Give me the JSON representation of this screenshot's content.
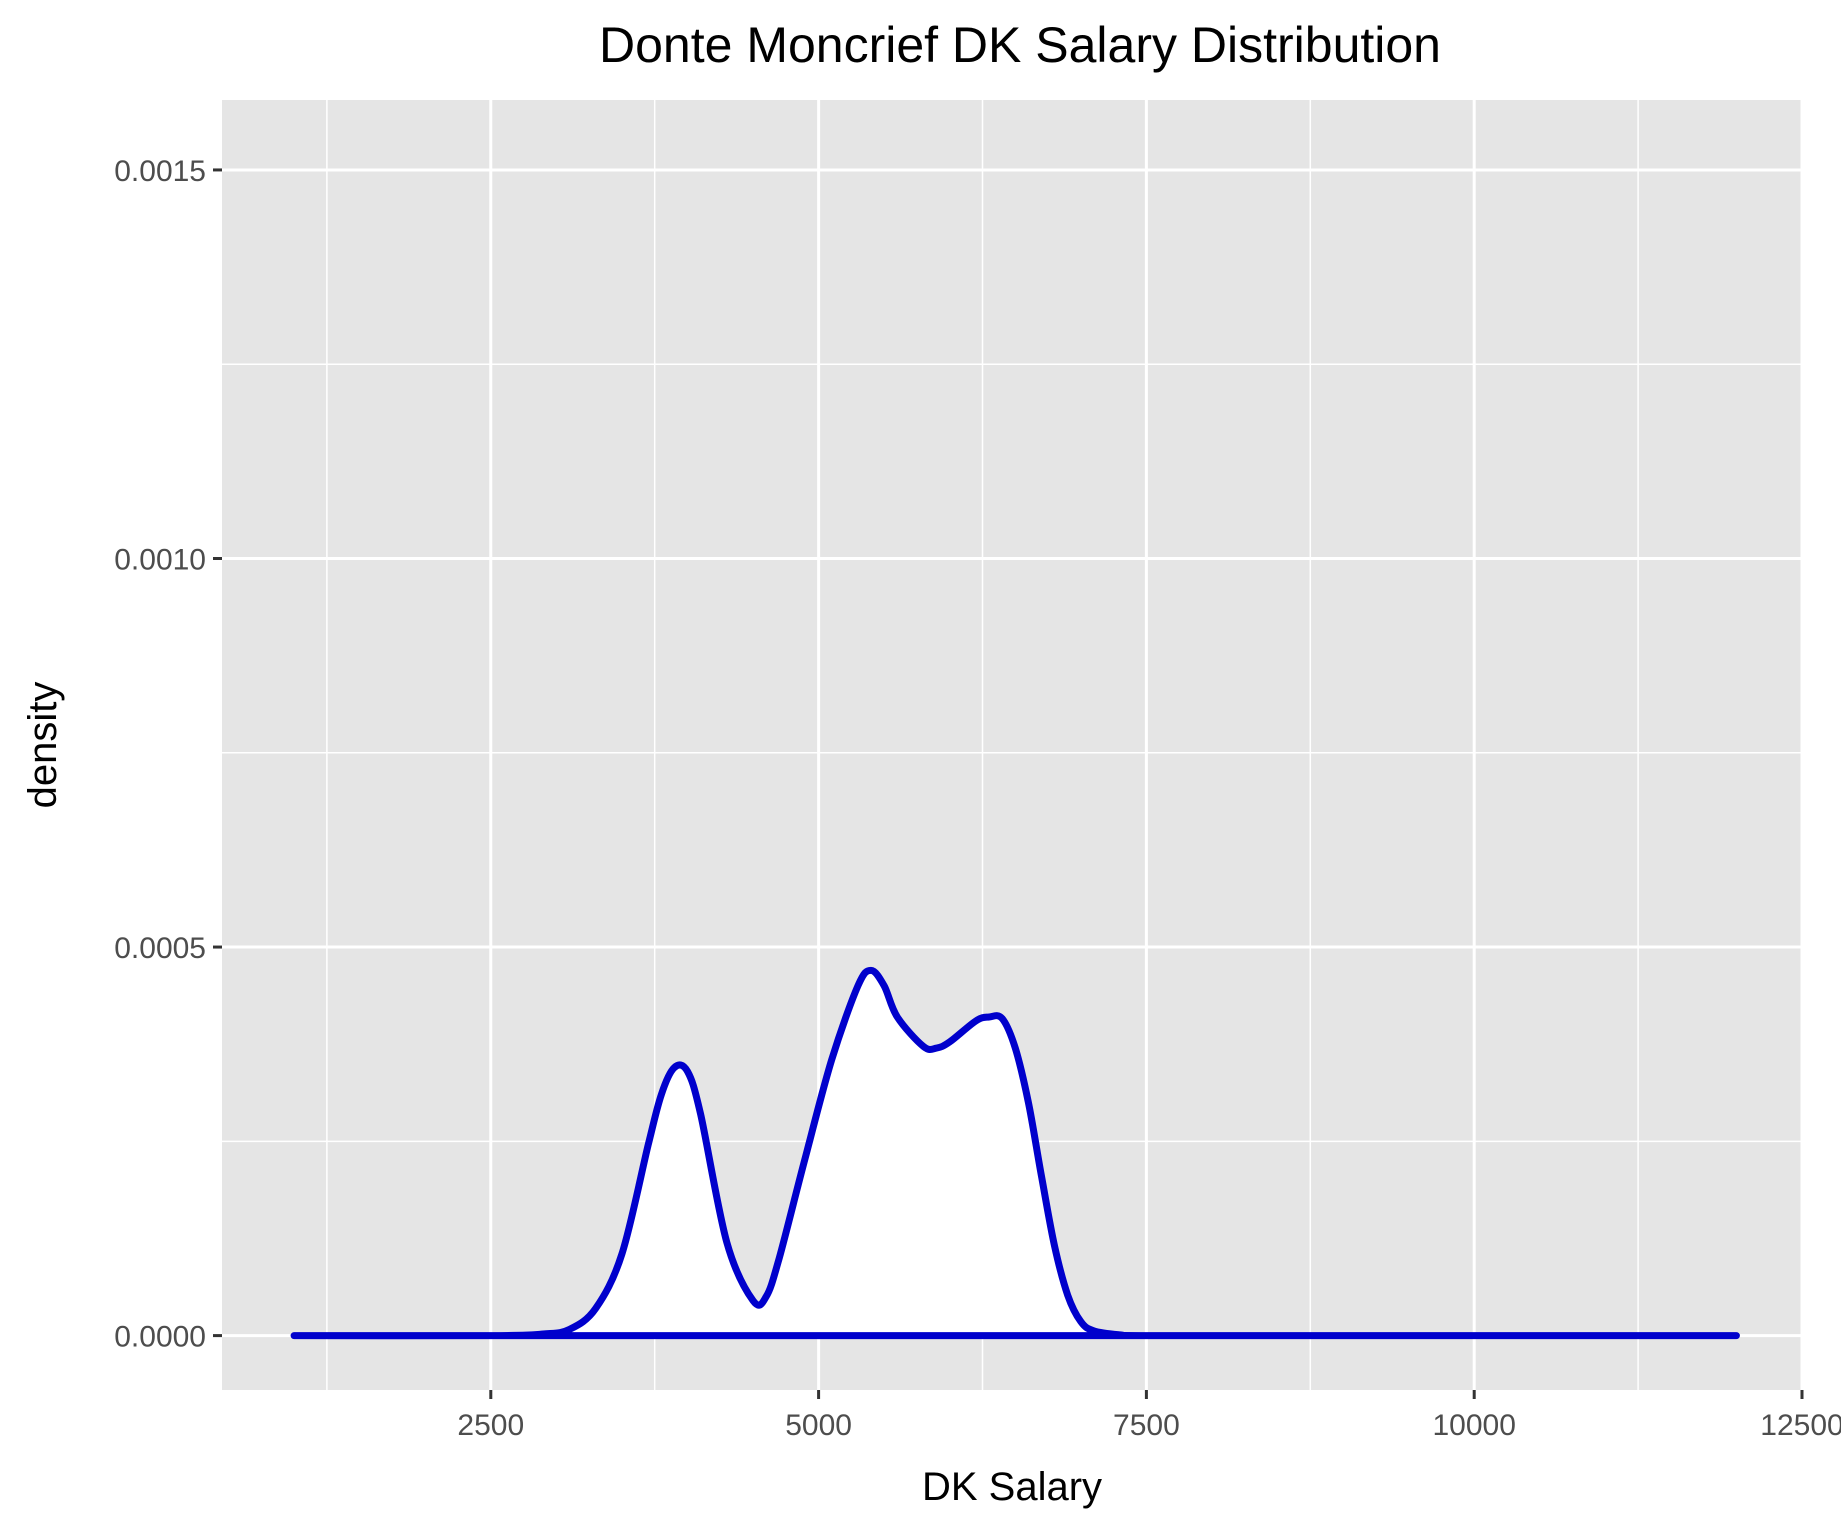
{
  "chart_data": {
    "type": "area",
    "title": "Donte Moncrief DK Salary Distribution",
    "xlabel": "DK Salary",
    "ylabel": "density",
    "xlim": [
      450,
      12500
    ],
    "ylim": [
      -7e-05,
      0.00159
    ],
    "x_ticks": [
      2500,
      5000,
      7500,
      10000,
      12500
    ],
    "x_tick_labels": [
      "2500",
      "5000",
      "7500",
      "10000",
      "12500"
    ],
    "y_ticks": [
      0,
      0.0005,
      0.001,
      0.0015
    ],
    "y_tick_labels": [
      "0.0000",
      "0.0005",
      "0.0010",
      "0.0015"
    ],
    "grid": true,
    "series": [
      {
        "x": [
          1000,
          2500,
          2900,
          3100,
          3300,
          3500,
          3700,
          3800,
          3900,
          4000,
          4100,
          4300,
          4500,
          4600,
          4700,
          4900,
          5100,
          5300,
          5400,
          5500,
          5600,
          5800,
          5900,
          6000,
          6200,
          6300,
          6400,
          6500,
          6600,
          6700,
          6800,
          6900,
          7000,
          7100,
          7300,
          7500,
          9000,
          12000
        ],
        "y": [
          0,
          0,
          2e-06,
          8e-06,
          3.5e-05,
          0.000105,
          0.000245,
          0.00031,
          0.000345,
          0.00034,
          0.000285,
          0.00012,
          4.5e-05,
          5e-05,
          0.0001,
          0.00023,
          0.000355,
          0.00045,
          0.00047,
          0.00045,
          0.00041,
          0.000372,
          0.00037,
          0.000378,
          0.000405,
          0.00041,
          0.000408,
          0.00037,
          0.0003,
          0.000205,
          0.000115,
          5.2e-05,
          1.8e-05,
          6e-06,
          1e-06,
          0,
          0,
          0
        ]
      }
    ],
    "colors": {
      "panel_background": "#e5e5e5",
      "grid": "#ffffff",
      "line": "#0000cc",
      "fill": "#ffffff"
    }
  }
}
